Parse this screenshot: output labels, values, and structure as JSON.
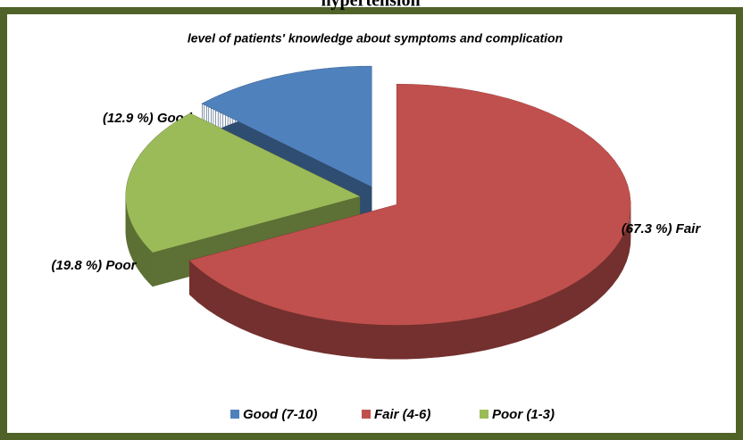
{
  "heading": "hypertension",
  "chart_data": {
    "type": "pie",
    "title": "level of patients' knowledge about symptoms and complication",
    "categories": [
      "Good (7-10)",
      "Fair (4-6)",
      "Poor (1-3)"
    ],
    "values": [
      12.9,
      67.3,
      19.8
    ],
    "value_labels": [
      "(12.9 %) Good",
      "(67.3 %) Fair",
      "(19.8 %) Poor"
    ],
    "colors": [
      "#4f81bd",
      "#c0504d",
      "#9bbb59"
    ],
    "legend": "bottom"
  }
}
